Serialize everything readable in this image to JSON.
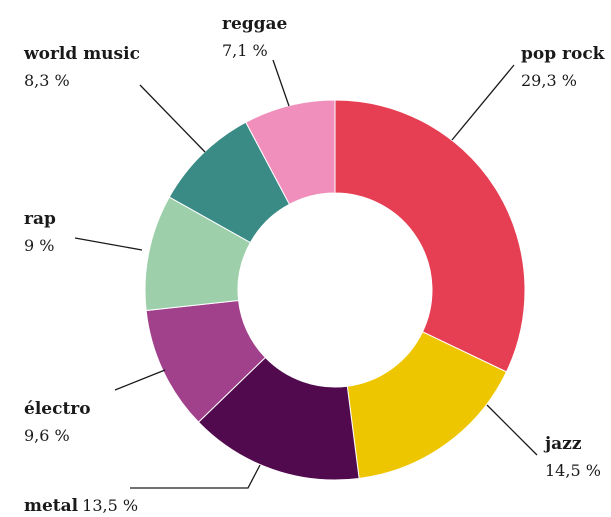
{
  "chart_data": {
    "type": "pie",
    "donut": true,
    "slices": [
      {
        "label": "pop rock",
        "value": 29.3,
        "display": "29,3 %",
        "color": "#e63e52"
      },
      {
        "label": "jazz",
        "value": 14.5,
        "display": "14,5 %",
        "color": "#eec600"
      },
      {
        "label": "metal",
        "value": 13.5,
        "display": "13,5 %",
        "color": "#520a4e"
      },
      {
        "label": "électro",
        "value": 9.6,
        "display": "9,6 %",
        "color": "#a1418c"
      },
      {
        "label": "rap",
        "value": 9,
        "display": "9 %",
        "color": "#9dd0aa"
      },
      {
        "label": "world music",
        "value": 8.3,
        "display": "8,3 %",
        "color": "#3a8b86"
      },
      {
        "label": "reggae",
        "value": 7.1,
        "display": "7,1 %",
        "color": "#f08fbb"
      }
    ]
  }
}
